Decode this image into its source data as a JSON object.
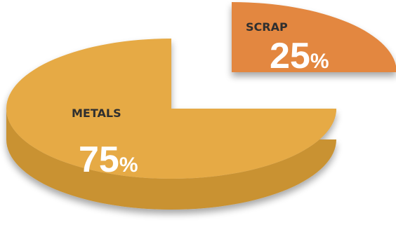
{
  "chart_data": {
    "type": "pie",
    "style": "3d-exploded",
    "legend": "none",
    "slices": [
      {
        "label": "METALS",
        "value": 75,
        "percent_text": "75",
        "percent_sign": "%",
        "color_top": "#E6AA45",
        "color_side": "#C99233"
      },
      {
        "label": "SCRAP",
        "value": 25,
        "percent_text": "25",
        "percent_sign": "%",
        "color_top": "#E3873F",
        "color_side": "#C4722F"
      }
    ]
  }
}
